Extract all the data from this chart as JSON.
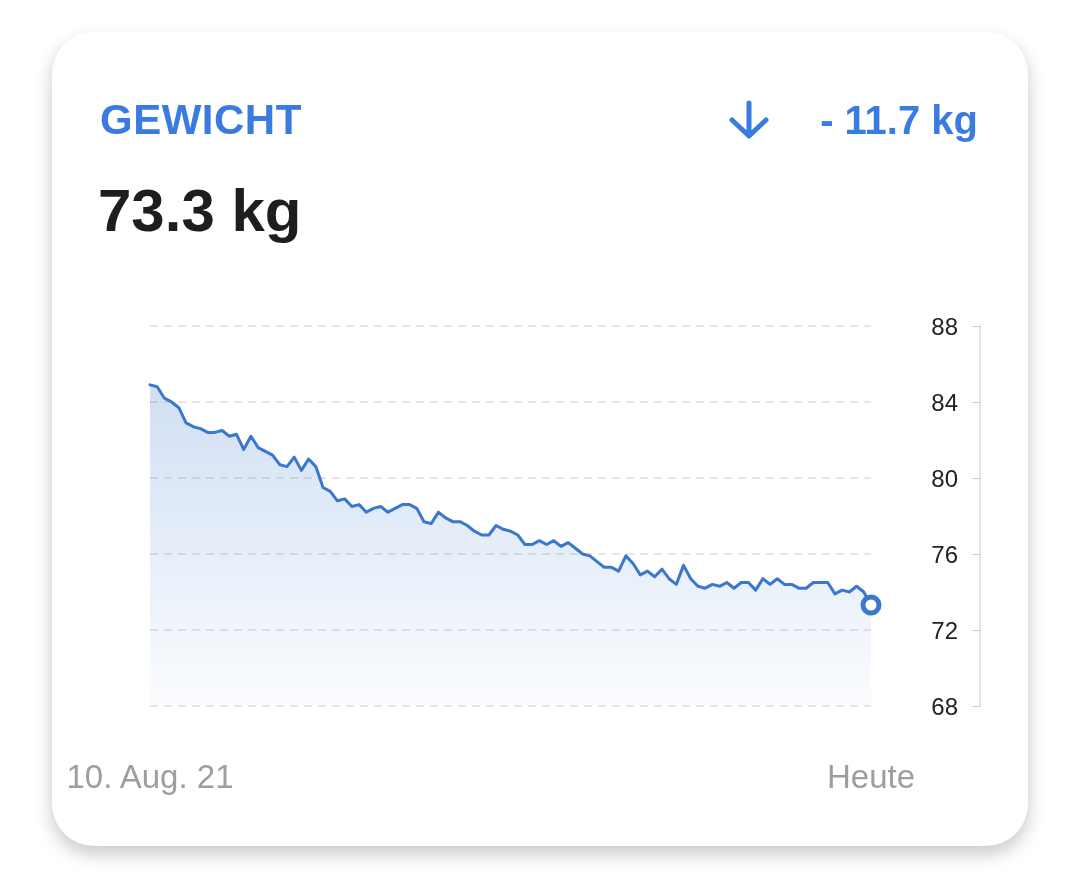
{
  "chart_data": {
    "type": "area",
    "title": "GEWICHT",
    "subtitle": "73.3 kg",
    "annotations": [
      "- 11.7 kg"
    ],
    "categories": [
      "10. Aug. 21",
      null,
      null,
      null,
      null,
      null,
      null,
      null,
      null,
      null,
      null,
      null,
      null,
      null,
      null,
      null,
      null,
      null,
      null,
      null,
      null,
      null,
      null,
      null,
      null,
      null,
      null,
      null,
      null,
      null,
      null,
      null,
      null,
      null,
      null,
      null,
      null,
      null,
      null,
      null,
      null,
      null,
      null,
      null,
      null,
      null,
      null,
      null,
      null,
      null,
      null,
      null,
      null,
      null,
      null,
      null,
      null,
      null,
      null,
      null,
      null,
      null,
      null,
      null,
      null,
      null,
      null,
      null,
      null,
      null,
      null,
      null,
      null,
      null,
      null,
      null,
      null,
      null,
      null,
      null,
      null,
      null,
      null,
      null,
      null,
      null,
      null,
      null,
      null,
      null,
      null,
      null,
      null,
      null,
      null,
      null,
      null,
      null,
      null,
      null,
      "Heute"
    ],
    "series": [
      {
        "color": "#3a78d0",
        "values": [
          84.9,
          84.8,
          84.2,
          84.0,
          83.7,
          82.9,
          82.7,
          82.6,
          82.4,
          82.4,
          82.5,
          82.2,
          82.3,
          81.5,
          82.2,
          81.6,
          81.4,
          81.2,
          80.7,
          80.6,
          81.1,
          80.4,
          81.0,
          80.6,
          79.5,
          79.3,
          78.8,
          78.9,
          78.5,
          78.6,
          78.2,
          78.4,
          78.5,
          78.2,
          78.4,
          78.6,
          78.6,
          78.4,
          77.7,
          77.6,
          78.2,
          77.9,
          77.7,
          77.7,
          77.5,
          77.2,
          77.0,
          77.0,
          77.5,
          77.3,
          77.2,
          77.0,
          76.5,
          76.5,
          76.7,
          76.5,
          76.7,
          76.4,
          76.6,
          76.3,
          76.0,
          75.9,
          75.6,
          75.3,
          75.3,
          75.1,
          75.9,
          75.5,
          74.9,
          75.1,
          74.8,
          75.2,
          74.7,
          74.4,
          75.4,
          74.7,
          74.3,
          74.2,
          74.4,
          74.3,
          74.5,
          74.2,
          74.5,
          74.5,
          74.1,
          74.7,
          74.4,
          74.7,
          74.4,
          74.4,
          74.2,
          74.2,
          74.5,
          74.5,
          74.5,
          73.9,
          74.1,
          74.0,
          74.3,
          74.0,
          73.3
        ]
      }
    ],
    "ylim": [
      68,
      88
    ],
    "yticks": [
      68,
      72,
      76,
      80,
      84,
      88
    ],
    "grid": "y",
    "line_style": "solid"
  }
}
